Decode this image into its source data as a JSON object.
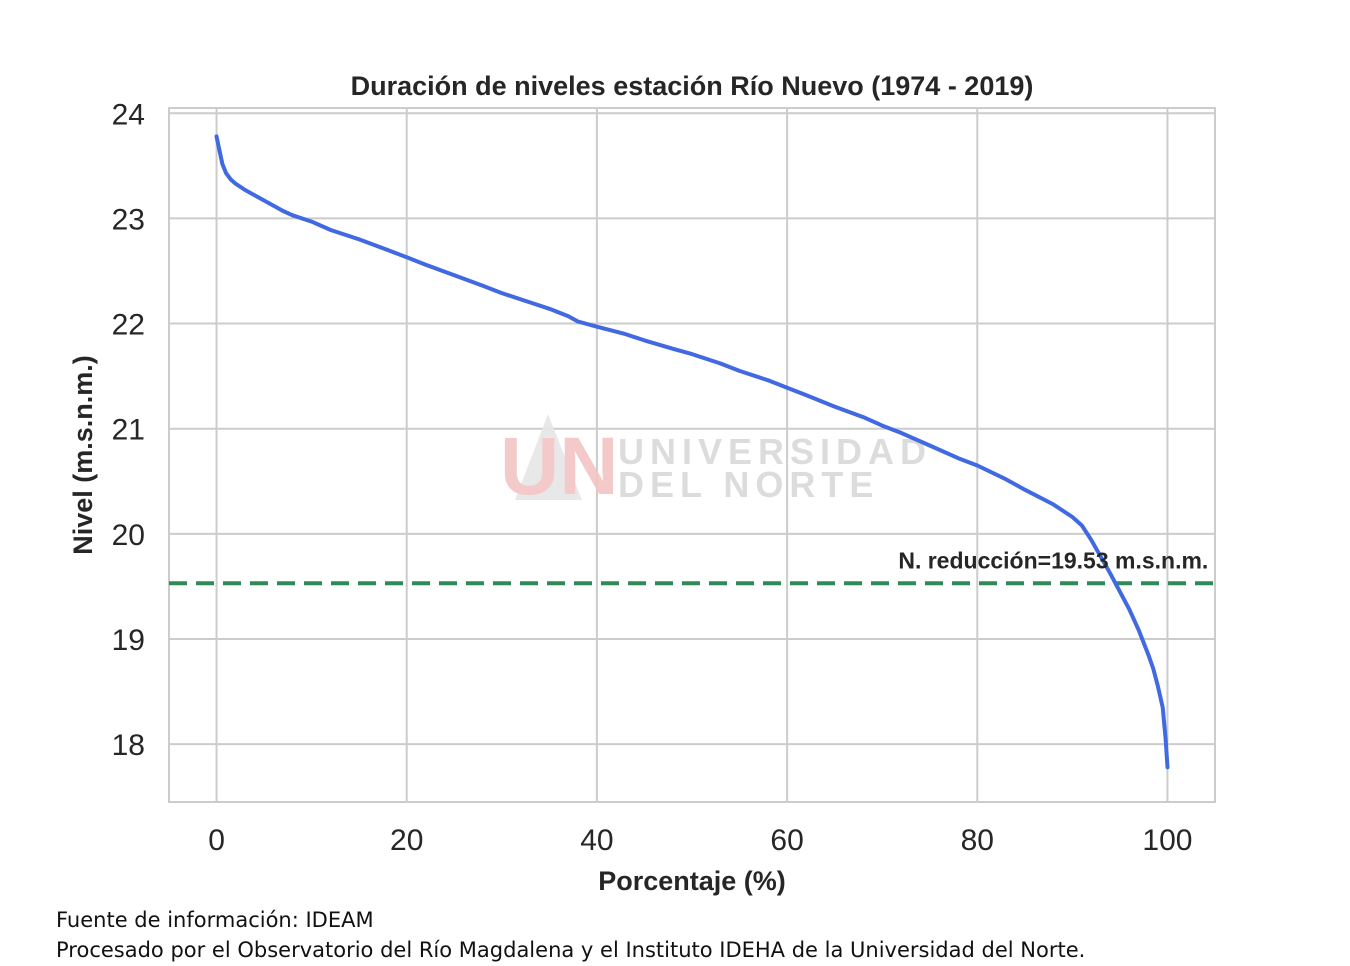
{
  "chart_data": {
    "type": "line",
    "title": "Duración de niveles estación Río Nuevo (1974 - 2019)",
    "xlabel": "Porcentaje (%)",
    "ylabel": "Nivel (m.s.n.m.)",
    "xlim": [
      -5,
      105
    ],
    "ylim": [
      17.45,
      24.05
    ],
    "xticks": [
      0,
      20,
      40,
      60,
      80,
      100
    ],
    "yticks": [
      18,
      19,
      20,
      21,
      22,
      23,
      24
    ],
    "grid": true,
    "series": [
      {
        "color": "#4169e1",
        "x": [
          0,
          0.3,
          0.6,
          1,
          1.5,
          2,
          3,
          4,
          5,
          6,
          7,
          8,
          10,
          12,
          15,
          18,
          20,
          22,
          25,
          28,
          30,
          33,
          35,
          37,
          38,
          40,
          43,
          45,
          48,
          50,
          53,
          55,
          58,
          60,
          62,
          65,
          68,
          70,
          72,
          75,
          78,
          80,
          83,
          85,
          88,
          90,
          91,
          92,
          93,
          94,
          95,
          96,
          97,
          98,
          98.5,
          99,
          99.5,
          99.8,
          100
        ],
        "y": [
          23.78,
          23.65,
          23.52,
          23.43,
          23.37,
          23.33,
          23.27,
          23.22,
          23.17,
          23.12,
          23.07,
          23.03,
          22.97,
          22.89,
          22.8,
          22.7,
          22.63,
          22.56,
          22.46,
          22.36,
          22.29,
          22.2,
          22.14,
          22.07,
          22.02,
          21.97,
          21.9,
          21.84,
          21.76,
          21.71,
          21.62,
          21.55,
          21.46,
          21.39,
          21.32,
          21.21,
          21.11,
          21.03,
          20.96,
          20.84,
          20.72,
          20.65,
          20.52,
          20.42,
          20.28,
          20.16,
          20.08,
          19.94,
          19.78,
          19.62,
          19.45,
          19.28,
          19.08,
          18.85,
          18.72,
          18.55,
          18.35,
          18.05,
          17.78
        ]
      }
    ],
    "reference_line": {
      "y": 19.53,
      "color": "#2e8b57",
      "style": "dashed"
    },
    "annotation": {
      "text": "N. reducción=19.53 m.s.n.m.",
      "x": 104.3,
      "y": 19.67,
      "anchor": "end"
    }
  },
  "watermark": {
    "logo_letters": "UN",
    "line1": "UNIVERSIDAD",
    "line2": "DEL NORTE"
  },
  "footer": {
    "line1": "Fuente de información: IDEAM",
    "line2": "Procesado por el Observatorio del Río Magdalena y el Instituto IDEHA de la Universidad del Norte."
  }
}
